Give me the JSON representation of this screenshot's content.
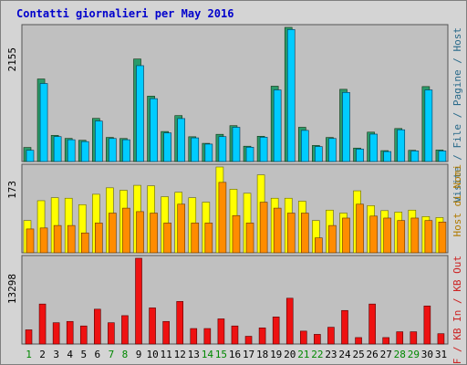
{
  "title": "Contatti giornalieri per May 2016",
  "colors": {
    "pages": "#00ccff",
    "files": "#00c0ff",
    "visits": "#2a9a6a",
    "hits_yellow": "#ffff00",
    "kb_orange": "#ff8c00",
    "red": "#ee1111",
    "panel": "#c0c0c0",
    "title": "#0000cc"
  },
  "chart_data": [
    {
      "type": "bar",
      "name": "top-panel",
      "ymax_label": "2155",
      "ymax": 2155,
      "categories": [
        "1",
        "2",
        "3",
        "4",
        "5",
        "6",
        "7",
        "8",
        "9",
        "10",
        "11",
        "12",
        "13",
        "14",
        "15",
        "16",
        "17",
        "18",
        "19",
        "20",
        "21",
        "22",
        "23",
        "24",
        "25",
        "26",
        "27",
        "28",
        "29",
        "30",
        "31"
      ],
      "series": [
        {
          "name": "Visite",
          "values": [
            226,
            1326,
            420,
            371,
            341,
            693,
            387,
            370,
            1647,
            1050,
            482,
            738,
            398,
            292,
            437,
            576,
            246,
            406,
            1210,
            2155,
            550,
            258,
            386,
            1160,
            216,
            472,
            175,
            530,
            180,
            1204,
            185
          ]
        },
        {
          "name": "Pagine",
          "values": [
            180,
            1253,
            400,
            350,
            320,
            650,
            370,
            350,
            1540,
            1010,
            460,
            690,
            380,
            280,
            400,
            550,
            230,
            390,
            1150,
            2120,
            500,
            240,
            370,
            1110,
            200,
            440,
            160,
            510,
            170,
            1150,
            170
          ]
        }
      ]
    },
    {
      "type": "bar",
      "name": "middle-panel",
      "ymax_label": "173",
      "ymax": 173,
      "series": [
        {
          "name": "Host",
          "values": [
            65,
            105,
            111,
            110,
            97,
            118,
            131,
            126,
            136,
            135,
            113,
            122,
            111,
            102,
            173,
            128,
            120,
            157,
            110,
            110,
            104,
            65,
            86,
            80,
            125,
            95,
            85,
            82,
            86,
            73,
            71
          ]
        },
        {
          "name": "Host amber",
          "values": [
            48,
            50,
            55,
            55,
            40,
            60,
            80,
            90,
            83,
            80,
            60,
            98,
            60,
            60,
            142,
            75,
            60,
            102,
            90,
            80,
            80,
            30,
            55,
            70,
            98,
            74,
            70,
            65,
            70,
            65,
            62
          ]
        }
      ]
    },
    {
      "type": "bar",
      "name": "bottom-panel",
      "ymax_label": "13298",
      "ymax": 13298,
      "series": [
        {
          "name": "KB F",
          "values": [
            2200,
            6200,
            3300,
            3500,
            2800,
            5400,
            3300,
            4400,
            13298,
            5600,
            3500,
            6600,
            2400,
            2400,
            3900,
            2800,
            1200,
            2500,
            4200,
            7100,
            2000,
            1500,
            2600,
            5200,
            1000,
            6200,
            1000,
            1900,
            1900,
            5900,
            1600
          ]
        }
      ]
    }
  ],
  "right_axis": [
    {
      "text": "Visite",
      "color": "#2a9a6a"
    },
    {
      "text": "/",
      "color": "#404040"
    },
    {
      "text": "File",
      "color": "#00a0ff"
    },
    {
      "text": "/",
      "color": "#404040"
    },
    {
      "text": "Pagine",
      "color": "#00ccff"
    },
    {
      "text": "/",
      "color": "#404040"
    },
    {
      "text": "Host",
      "color": "#ff8c00"
    },
    {
      "text": "/",
      "color": "#404040"
    },
    {
      "text": "Host",
      "color": "#e6e600"
    }
  ],
  "right_axis_top": "Visite / File / Pagine / Host",
  "right_axis_mid": "Host di Nomi",
  "right_axis_bottom": "KB F / KB In / KB Out",
  "day_colors": [
    "#008800",
    "#000000",
    "#000000",
    "#000000",
    "#000000",
    "#000000",
    "#008800",
    "#008800",
    "#000000",
    "#000000",
    "#000000",
    "#000000",
    "#000000",
    "#008800",
    "#008800",
    "#000000",
    "#000000",
    "#000000",
    "#000000",
    "#000000",
    "#008800",
    "#008800",
    "#000000",
    "#000000",
    "#000000",
    "#000000",
    "#000000",
    "#008800",
    "#008800",
    "#000000",
    "#000000"
  ]
}
